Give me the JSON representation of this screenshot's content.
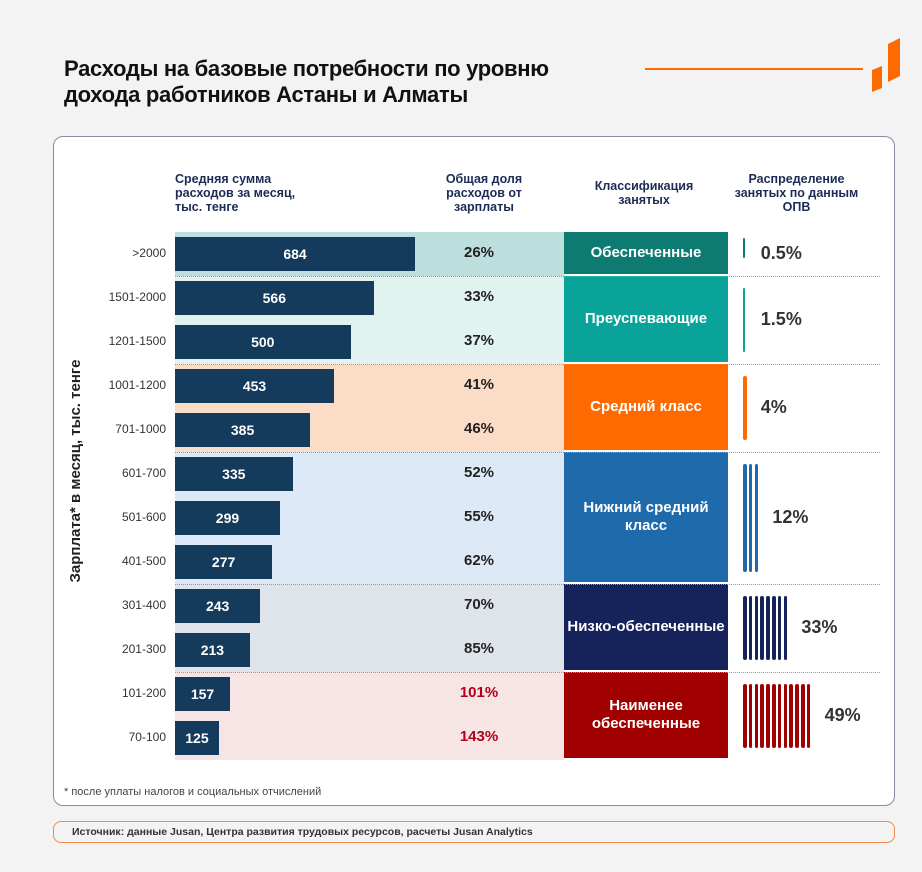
{
  "title_line1": "Расходы на базовые потребности по уровню",
  "title_line2": "дохода работников Астаны и Алматы",
  "chart_data": {
    "type": "table",
    "ylabel": "Зарплата* в месяц, тыс. тенге",
    "headers": [
      "Средняя сумма расходов за месяц, тыс. тенге",
      "Общая доля расходов от зарплаты",
      "Классификация занятых",
      "Распределение занятых по данным ОПВ"
    ],
    "categories": [
      ">2000",
      "1501-2000",
      "1201-1500",
      "1001-1200",
      "701-1000",
      "601-700",
      "501-600",
      "401-500",
      "301-400",
      "201-300",
      "101-200",
      "70-100"
    ],
    "spending": [
      684,
      566,
      500,
      453,
      385,
      335,
      299,
      277,
      243,
      213,
      157,
      125
    ],
    "share_labels": [
      "26%",
      "33%",
      "37%",
      "41%",
      "46%",
      "52%",
      "55%",
      "62%",
      "70%",
      "85%",
      "101%",
      "143%"
    ],
    "groups": [
      {
        "name": "Обеспеченные",
        "rows": 1,
        "color": "#0e7b73",
        "bg": "#bcdedc",
        "distribution": 0.5,
        "distribution_label": "0.5%"
      },
      {
        "name": "Преуспевающие",
        "rows": 2,
        "color": "#0aa39a",
        "bg": "#e0f3f1",
        "distribution": 1.5,
        "distribution_label": "1.5%"
      },
      {
        "name": "Средний класс",
        "rows": 2,
        "color": "#ff6a00",
        "bg": "#fbdcc7",
        "distribution": 4,
        "distribution_label": "4%"
      },
      {
        "name": "Нижний средний класс",
        "rows": 3,
        "color": "#1e6aaa",
        "bg": "#dde9f6",
        "distribution": 12,
        "distribution_label": "12%"
      },
      {
        "name": "Низко-обеспеченные",
        "rows": 2,
        "color": "#16225a",
        "bg": "#dfe3ea",
        "distribution": 33,
        "distribution_label": "33%"
      },
      {
        "name": "Наименее обеспеченные",
        "rows": 2,
        "color": "#a00000",
        "bg": "#f7e4e4",
        "distribution": 49,
        "distribution_label": "49%"
      }
    ],
    "highlight_color": "#b0001a"
  },
  "header_col1": "Средняя сумма расходов за месяц, тыс. тенге",
  "header_col2": "Общая доля расходов от зарплаты",
  "header_col3": "Классификация занятых",
  "header_col4": "Распределение занятых по данным ОПВ",
  "footnote": "* после уплаты налогов и социальных отчислений",
  "source": "Источник: данные Jusan, Центра развития трудовых ресурсов, расчеты Jusan Analytics",
  "brand_color": "#ff6a00"
}
